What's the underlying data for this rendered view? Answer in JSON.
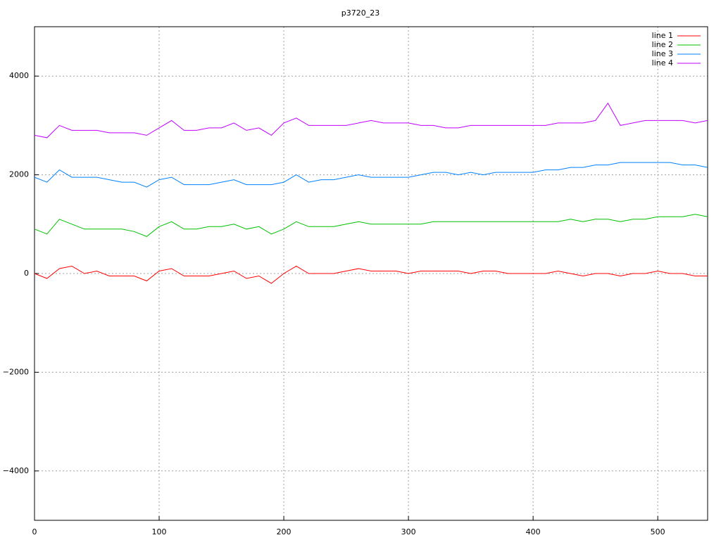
{
  "chart_data": {
    "type": "line",
    "title": "p3720_23",
    "x": [
      0,
      10,
      20,
      30,
      40,
      50,
      60,
      70,
      80,
      90,
      100,
      110,
      120,
      130,
      140,
      150,
      160,
      170,
      180,
      190,
      200,
      210,
      220,
      230,
      240,
      250,
      260,
      270,
      280,
      290,
      300,
      310,
      320,
      330,
      340,
      350,
      360,
      370,
      380,
      390,
      400,
      410,
      420,
      430,
      440,
      450,
      460,
      470,
      480,
      490,
      500,
      510,
      520,
      530,
      540
    ],
    "series": [
      {
        "name": "line 1",
        "color": "#ff0000",
        "values": [
          0,
          -100,
          100,
          150,
          0,
          50,
          -50,
          -50,
          -50,
          -150,
          50,
          100,
          -50,
          -50,
          -50,
          0,
          50,
          -100,
          -50,
          -200,
          0,
          150,
          0,
          0,
          0,
          50,
          100,
          50,
          50,
          50,
          0,
          50,
          50,
          50,
          50,
          0,
          50,
          50,
          0,
          0,
          0,
          0,
          50,
          0,
          -50,
          0,
          0,
          -50,
          0,
          0,
          50,
          0,
          0,
          -50,
          -50
        ]
      },
      {
        "name": "line 2",
        "color": "#00c000",
        "values": [
          900,
          800,
          1100,
          1000,
          900,
          900,
          900,
          900,
          850,
          750,
          950,
          1050,
          900,
          900,
          950,
          950,
          1000,
          900,
          950,
          800,
          900,
          1050,
          950,
          950,
          950,
          1000,
          1050,
          1000,
          1000,
          1000,
          1000,
          1000,
          1050,
          1050,
          1050,
          1050,
          1050,
          1050,
          1050,
          1050,
          1050,
          1050,
          1050,
          1100,
          1050,
          1100,
          1100,
          1050,
          1100,
          1100,
          1150,
          1150,
          1150,
          1200,
          1150
        ]
      },
      {
        "name": "line 3",
        "color": "#0080ff",
        "values": [
          1950,
          1850,
          2100,
          1950,
          1950,
          1950,
          1900,
          1850,
          1850,
          1750,
          1900,
          1950,
          1800,
          1800,
          1800,
          1850,
          1900,
          1800,
          1800,
          1800,
          1850,
          2000,
          1850,
          1900,
          1900,
          1950,
          2000,
          1950,
          1950,
          1950,
          1950,
          2000,
          2050,
          2050,
          2000,
          2050,
          2000,
          2050,
          2050,
          2050,
          2050,
          2100,
          2100,
          2150,
          2150,
          2200,
          2200,
          2250,
          2250,
          2250,
          2250,
          2250,
          2200,
          2200,
          2150
        ]
      },
      {
        "name": "line 4",
        "color": "#c000ff",
        "values": [
          2800,
          2750,
          3000,
          2900,
          2900,
          2900,
          2850,
          2850,
          2850,
          2800,
          2950,
          3100,
          2900,
          2900,
          2950,
          2950,
          3050,
          2900,
          2950,
          2800,
          3050,
          3150,
          3000,
          3000,
          3000,
          3000,
          3050,
          3100,
          3050,
          3050,
          3050,
          3000,
          3000,
          2950,
          2950,
          3000,
          3000,
          3000,
          3000,
          3000,
          3000,
          3000,
          3050,
          3050,
          3050,
          3100,
          3450,
          3000,
          3050,
          3100,
          3100,
          3100,
          3100,
          3050,
          3100
        ]
      }
    ],
    "xlim": [
      0,
      540
    ],
    "ylim": [
      -5000,
      5000
    ],
    "xticks": [
      0,
      100,
      200,
      300,
      400,
      500
    ],
    "yticks": [
      {
        "value": -4000,
        "label": "−4000"
      },
      {
        "value": -2000,
        "label": "−2000"
      },
      0,
      2000,
      4000
    ],
    "grid": true,
    "legend": "top-right"
  }
}
